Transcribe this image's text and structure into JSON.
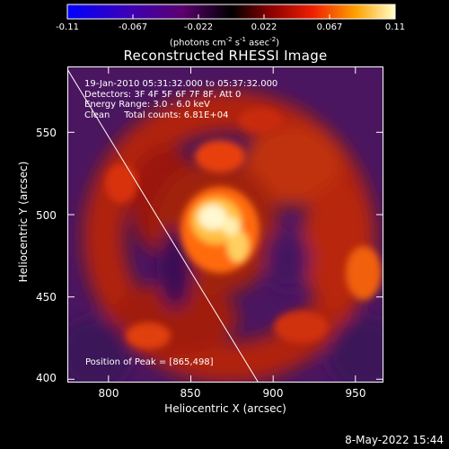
{
  "colorbar": {
    "ticks": [
      "-0.11",
      "-0.067",
      "-0.022",
      "0.022",
      "0.067",
      "0.11"
    ],
    "units_main": "(photons cm",
    "units_exp1": "-2",
    "units_s": " s",
    "units_exp2": "-1",
    "units_asec": " asec",
    "units_exp3": "-2",
    "units_end": ")"
  },
  "chart_data": {
    "type": "heatmap",
    "title": "Reconstructed RHESSI Image",
    "xlabel": "Heliocentric X (arcsec)",
    "ylabel": "Heliocentric Y (arcsec)",
    "xlim": [
      775,
      967
    ],
    "ylim": [
      398,
      590
    ],
    "xticks": [
      "800",
      "850",
      "900",
      "950"
    ],
    "yticks": [
      "400",
      "450",
      "500",
      "550"
    ],
    "color_range": [
      -0.11,
      0.11
    ],
    "peak": {
      "x": 865,
      "y": 498
    },
    "limb_line": [
      [
        775,
        588
      ],
      [
        891,
        398
      ]
    ],
    "info_lines": [
      "19-Jan-2010 05:31:32.000 to 05:37:32.000",
      "Detectors: 3F 4F 5F 6F 7F 8F, Att 0",
      "Energy Range: 3.0 - 6.0 keV",
      "Clean     Total counts: 6.81E+04"
    ],
    "peak_label": "Position of Peak = [865,498]"
  },
  "footer": {
    "date": "8-May-2022 15:44"
  }
}
